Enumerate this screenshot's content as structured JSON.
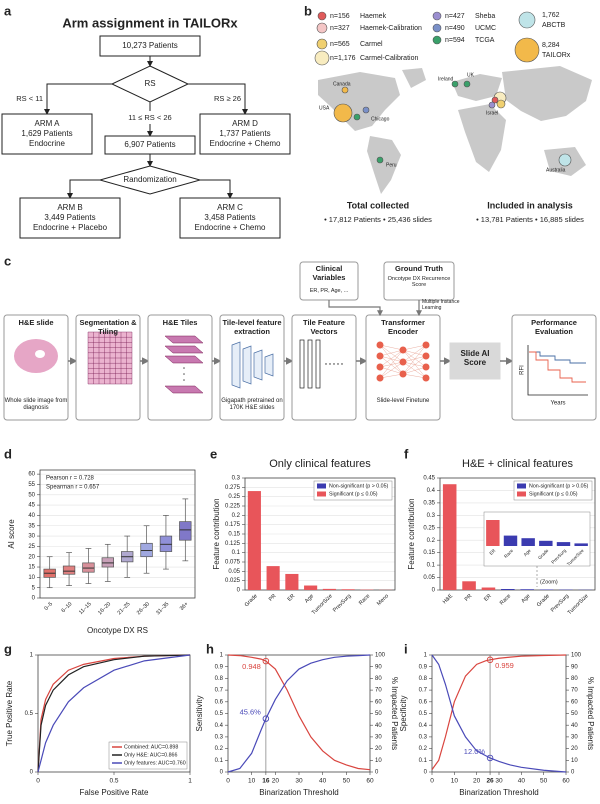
{
  "panel_labels": [
    "a",
    "b",
    "c",
    "d",
    "e",
    "f",
    "g",
    "h",
    "i"
  ],
  "flowchart": {
    "title": "Arm assignment in TAILORx",
    "start": "10,273 Patients",
    "decision": "RS",
    "branches": [
      "RS < 11",
      "11 ≤ RS < 26",
      "RS ≥ 26"
    ],
    "arm_a": [
      "ARM A",
      "1,629 Patients",
      "Endocrine"
    ],
    "middle": "6,907 Patients",
    "arm_d": [
      "ARM D",
      "1,737 Patients",
      "Endocrine + Chemo"
    ],
    "randomization": "Randomization",
    "arm_b": [
      "ARM B",
      "3,449 Patients",
      "Endocrine + Placebo"
    ],
    "arm_c": [
      "ARM C",
      "3,458 Patients",
      "Endocrine + Chemo"
    ]
  },
  "map": {
    "legend": [
      {
        "n": "n=156",
        "name": "Haemek",
        "color": "#e05a5a"
      },
      {
        "n": "n=327",
        "name": "Haemek-Calibration",
        "color": "#f4c6c6"
      },
      {
        "n": "n=565",
        "name": "Carmel",
        "color": "#f0d070"
      },
      {
        "n": "n=1,176",
        "name": "Carmel-Calibration",
        "color": "#f8ecc0"
      },
      {
        "n": "n=427",
        "name": "Sheba",
        "color": "#9b8fd0"
      },
      {
        "n": "n=490",
        "name": "UCMC",
        "color": "#7a90c8"
      },
      {
        "n": "n=594",
        "name": "TCGA",
        "color": "#3aa06a"
      },
      {
        "n": "1,762",
        "name": "ABCTB",
        "color": "#bfe4e8"
      },
      {
        "n": "8,284",
        "name": "TAILORx",
        "color": "#f2b94a"
      }
    ],
    "places": [
      "Canada",
      "USA",
      "Chicago",
      "Ireland",
      "UK",
      "Israel",
      "Peru",
      "Australia"
    ],
    "summary": [
      {
        "title": "Total collected",
        "text": "• 17,812 Patients   • 25,436 slides"
      },
      {
        "title": "Included in analysis",
        "text": "• 13,781 Patients   • 16,885 slides"
      }
    ]
  },
  "pipeline": {
    "steps": [
      {
        "title": "H&E slide",
        "caption": "Whole slide image from diagnosis"
      },
      {
        "title": "Segmentation & Tiling"
      },
      {
        "title": "H&E Tiles"
      },
      {
        "title": "Tile-level feature extraction",
        "caption": "Gigapath pretrained on 170K H&E slides"
      },
      {
        "title": "Tile Feature Vectors"
      },
      {
        "title": "Transformer Encoder",
        "caption": "Slide-level Finetune"
      },
      {
        "title": "Slide AI Score"
      },
      {
        "title": "Performance Evaluation"
      }
    ],
    "clinical": {
      "title": "Clinical Variables",
      "text": "ER, PR, Age, ..."
    },
    "ground_truth": {
      "title": "Ground Truth",
      "text": "Oncotype DX Recurrence Score"
    },
    "mil": "Multiple Instance Learning",
    "km_axes": [
      "RFI",
      "Years"
    ]
  },
  "chart_data": [
    {
      "type": "box",
      "xlabel": "Oncotype DX RS",
      "ylabel": "AI score",
      "categories": [
        "0–5",
        "6–10",
        "11–15",
        "16–20",
        "21–25",
        "26–30",
        "31–35",
        "36+"
      ],
      "whisker_low": [
        5,
        6,
        7,
        8,
        10,
        12,
        14,
        18
      ],
      "q1": [
        10,
        11.5,
        12.5,
        15,
        17.5,
        20,
        22.5,
        28
      ],
      "median": [
        12,
        13,
        14.5,
        17,
        20,
        23,
        26,
        33
      ],
      "q3": [
        14,
        15.5,
        17,
        19.5,
        22.5,
        26.5,
        30,
        37
      ],
      "whisker_high": [
        20,
        22,
        24,
        26,
        30,
        35,
        40,
        48
      ],
      "colors": [
        "#e0706a",
        "#e08080",
        "#d8909a",
        "#c8a0b8",
        "#b0a8d0",
        "#a0a8e0",
        "#9090d8",
        "#8078c8"
      ],
      "ylim": [
        0,
        62
      ],
      "yticks": [
        0,
        5,
        10,
        15,
        20,
        25,
        30,
        35,
        40,
        45,
        50,
        55,
        60
      ],
      "grid": true,
      "annotations": [
        "Pearson r = 0.728",
        "Spearman r = 0.657"
      ]
    },
    {
      "type": "bar",
      "title": "Only clinical features",
      "ylabel": "Feature contribution",
      "categories": [
        "Grade",
        "PR",
        "ER",
        "Age",
        "TumorSize",
        "PrevSurg",
        "Race",
        "Meno"
      ],
      "values": [
        0.265,
        0.064,
        0.043,
        0.012,
        0.003,
        0.002,
        0.001,
        0.0005
      ],
      "colors": [
        "#e8555a",
        "#e8555a",
        "#e8555a",
        "#e8555a",
        "#e8555a",
        "#e8555a",
        "#e8555a",
        "#e8555a"
      ],
      "ylim": [
        0,
        0.3
      ],
      "yticks": [
        0,
        0.025,
        0.05,
        0.075,
        0.1,
        0.125,
        0.15,
        0.175,
        0.2,
        0.225,
        0.25,
        0.275,
        0.3
      ],
      "grid": true,
      "legend": [
        {
          "name": "Non-significant (p > 0.05)",
          "color": "#3b3bb0"
        },
        {
          "name": "Significant (p ≤ 0.05)",
          "color": "#e8555a"
        }
      ],
      "legend_position": "upper right"
    },
    {
      "type": "bar",
      "title": "H&E + clinical features",
      "ylabel": "Feature contribution",
      "categories": [
        "H&E",
        "PR",
        "ER",
        "Race",
        "Age",
        "Grade",
        "PrevSurg",
        "TumorSize"
      ],
      "values": [
        0.425,
        0.035,
        0.01,
        0.004,
        0.003,
        0.002,
        0.0015,
        0.001
      ],
      "colors": [
        "#e8555a",
        "#e8555a",
        "#e8555a",
        "#3b3bb0",
        "#3b3bb0",
        "#3b3bb0",
        "#3b3bb0",
        "#3b3bb0"
      ],
      "ylim": [
        0,
        0.45
      ],
      "yticks": [
        0,
        0.05,
        0.1,
        0.15,
        0.2,
        0.25,
        0.3,
        0.35,
        0.4,
        0.45
      ],
      "grid": true,
      "legend": [
        {
          "name": "Non-significant (p > 0.05)",
          "color": "#3b3bb0"
        },
        {
          "name": "Significant (p ≤ 0.05)",
          "color": "#e8555a"
        }
      ],
      "legend_position": "upper right",
      "annotations": [
        "(Zoom)"
      ]
    },
    {
      "type": "line",
      "xlabel": "False Positive Rate",
      "ylabel": "True Positive Rate",
      "x": [
        0,
        0.02,
        0.05,
        0.1,
        0.2,
        0.3,
        0.5,
        0.7,
        1
      ],
      "xlim": [
        0,
        1
      ],
      "ylim": [
        0,
        1
      ],
      "xticks": [
        0,
        0.5,
        1
      ],
      "yticks": [
        0,
        0.5,
        1
      ],
      "grid": false,
      "series": [
        {
          "name": "Combined: AUC=0.898",
          "color": "#d9453f",
          "values": [
            0,
            0.45,
            0.62,
            0.75,
            0.87,
            0.92,
            0.97,
            0.99,
            1
          ]
        },
        {
          "name": "Only H&E: AUC=0.866",
          "color": "#222222",
          "values": [
            0,
            0.4,
            0.57,
            0.7,
            0.83,
            0.9,
            0.96,
            0.99,
            1
          ]
        },
        {
          "name": "Only features: AUC=0.760",
          "color": "#4a4ab8",
          "values": [
            0,
            0.1,
            0.25,
            0.4,
            0.6,
            0.72,
            0.87,
            0.95,
            1
          ]
        }
      ],
      "legend_position": "lower right"
    },
    {
      "type": "line",
      "xlabel": "Binarization Threshold",
      "ylabel": "Sensitivity",
      "y2label": "% Impacted Patients",
      "x": [
        0,
        5,
        10,
        14,
        16,
        20,
        25,
        30,
        35,
        40,
        45,
        50,
        55,
        60
      ],
      "xlim": [
        0,
        60
      ],
      "ylim": [
        0,
        1
      ],
      "y2lim": [
        0,
        100
      ],
      "xticks": [
        0,
        10,
        16,
        20,
        30,
        40,
        50,
        60
      ],
      "yticks": [
        0,
        0.1,
        0.2,
        0.3,
        0.4,
        0.5,
        0.6,
        0.7,
        0.8,
        0.9,
        1
      ],
      "y2ticks": [
        0,
        10,
        20,
        30,
        40,
        50,
        60,
        70,
        80,
        90,
        100
      ],
      "grid": false,
      "series": [
        {
          "color": "#d9453f",
          "values": [
            1,
            0.995,
            0.98,
            0.965,
            0.948,
            0.88,
            0.7,
            0.48,
            0.3,
            0.18,
            0.1,
            0.06,
            0.03,
            0.02
          ]
        },
        {
          "color": "#4a4ab8",
          "axis": "y2",
          "values": [
            0,
            3,
            16,
            36,
            45.6,
            62,
            78,
            88,
            93,
            96,
            98,
            99,
            99.5,
            100
          ]
        }
      ],
      "annotations": [
        "0.948",
        "45.6%"
      ]
    },
    {
      "type": "line",
      "xlabel": "Binarization Threshold",
      "ylabel": "Specificity",
      "y2label": "% Impacted Patients",
      "x": [
        0,
        3,
        6,
        10,
        15,
        20,
        24,
        26,
        30,
        35,
        40,
        50,
        60
      ],
      "xlim": [
        0,
        60
      ],
      "ylim": [
        0,
        1
      ],
      "y2lim": [
        0,
        100
      ],
      "xticks": [
        0,
        10,
        20,
        26,
        30,
        40,
        50,
        60
      ],
      "yticks": [
        0,
        0.1,
        0.2,
        0.3,
        0.4,
        0.5,
        0.6,
        0.7,
        0.8,
        0.9,
        1
      ],
      "y2ticks": [
        0,
        10,
        20,
        30,
        40,
        50,
        60,
        70,
        80,
        90,
        100
      ],
      "grid": false,
      "series": [
        {
          "color": "#d9453f",
          "values": [
            0.02,
            0.1,
            0.3,
            0.6,
            0.82,
            0.92,
            0.95,
            0.959,
            0.972,
            0.982,
            0.99,
            0.996,
            1
          ]
        },
        {
          "color": "#4a4ab8",
          "axis": "y2",
          "values": [
            100,
            92,
            75,
            48,
            30,
            18,
            14,
            12,
            9,
            6,
            4,
            1.5,
            0
          ]
        }
      ],
      "annotations": [
        "0.959",
        "12.0%"
      ]
    }
  ]
}
